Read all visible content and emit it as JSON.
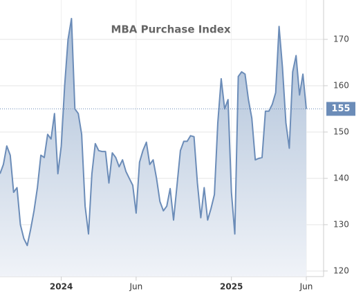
{
  "chart_data": {
    "type": "area",
    "title": "MBA Purchase Index",
    "categories": [
      null,
      null,
      null,
      null,
      null,
      null,
      null,
      null,
      null,
      null,
      null,
      null,
      null,
      null,
      null,
      null,
      null,
      null,
      "2024",
      null,
      null,
      null,
      null,
      null,
      null,
      null,
      null,
      null,
      null,
      null,
      null,
      null,
      null,
      null,
      null,
      null,
      null,
      null,
      null,
      null,
      "Jun",
      null,
      null,
      null,
      null,
      null,
      null,
      null,
      null,
      null,
      null,
      null,
      null,
      null,
      null,
      null,
      null,
      null,
      null,
      null,
      null,
      null,
      null,
      null,
      null,
      null,
      null,
      null,
      "2025",
      null,
      null,
      null,
      null,
      null,
      null,
      null,
      null,
      null,
      null,
      null,
      null,
      null,
      null,
      null,
      null,
      null,
      null,
      null,
      null,
      null,
      "Jun"
    ],
    "values": [
      141,
      143,
      147,
      145,
      137,
      138,
      130,
      127,
      125.5,
      129,
      133,
      138,
      145,
      144.5,
      149.5,
      148.5,
      154,
      141,
      147,
      160,
      170,
      174.5,
      155,
      154,
      149.5,
      134,
      128,
      141,
      147.5,
      146,
      145.8,
      145.8,
      139,
      145.5,
      144.5,
      142.5,
      144,
      141.5,
      140,
      138.5,
      132.5,
      143.5,
      146,
      147.8,
      143,
      144,
      140,
      135,
      133,
      134,
      137.8,
      131,
      138.5,
      146,
      148,
      148,
      149.2,
      149,
      139,
      131.5,
      138,
      131,
      133.5,
      136.5,
      152,
      161.5,
      155,
      157,
      137,
      128,
      162,
      163,
      162.5,
      157,
      153,
      144,
      144.3,
      144.5,
      154.5,
      154.5,
      156,
      158.5,
      172.8,
      164,
      152,
      146.5,
      163,
      166.5,
      158,
      162.5,
      155
    ],
    "color": "#6b8cb8",
    "ylim": [
      118.8,
      178.5
    ],
    "yticks": [
      120,
      130,
      140,
      150,
      160,
      170
    ],
    "grid": true
  }
}
